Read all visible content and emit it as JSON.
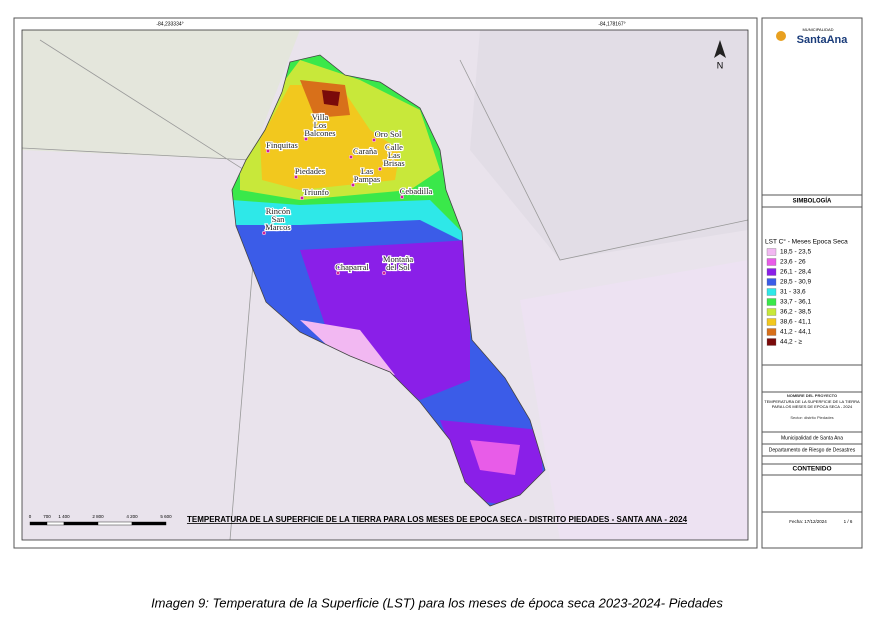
{
  "map": {
    "coords_top": [
      "-84,233334°",
      "-84,178167°"
    ],
    "north": "N",
    "title": "TEMPERATURA DE LA SUPERFICIE DE LA TIERRA PARA LOS MESES DE EPOCA SECA - DISTRITO PIEDADES - SANTA ANA - 2024",
    "scale_labels": [
      "0",
      "700",
      "1 400",
      "2 800",
      "4 200",
      "5 600"
    ],
    "places": [
      {
        "lines": [
          "Finquitas"
        ]
      },
      {
        "lines": [
          "Villa",
          "Los",
          "Balcones"
        ]
      },
      {
        "lines": [
          "Oro Sol"
        ]
      },
      {
        "lines": [
          "Caraña"
        ]
      },
      {
        "lines": [
          "Calle",
          "Las",
          "Brisas"
        ]
      },
      {
        "lines": [
          "Las",
          "Pampas"
        ]
      },
      {
        "lines": [
          "Piedades"
        ]
      },
      {
        "lines": [
          "Triunfo"
        ]
      },
      {
        "lines": [
          "Cebadilla"
        ]
      },
      {
        "lines": [
          "Rincón",
          "San",
          "Marcos"
        ]
      },
      {
        "lines": [
          "Chaparral"
        ]
      },
      {
        "lines": [
          "Montaña",
          "del Sol"
        ]
      }
    ]
  },
  "panel": {
    "logo_small": "MUNICIPALIDAD",
    "logo": "SantaAna",
    "symbology": "SIMBOLOGÍA",
    "legend_title": "LST C° - Meses Epoca Seca",
    "legend": [
      {
        "label": "18,5 - 23,5",
        "color": "#f2b8f2"
      },
      {
        "label": "23,6 - 26",
        "color": "#e85ce8"
      },
      {
        "label": "26,1 - 28,4",
        "color": "#8a1fe8"
      },
      {
        "label": "28,5 - 30,9",
        "color": "#3b5ce8"
      },
      {
        "label": "31 - 33,6",
        "color": "#2ee8e8"
      },
      {
        "label": "33,7 - 36,1",
        "color": "#3ae84a"
      },
      {
        "label": "36,2 - 38,5",
        "color": "#c8e83a"
      },
      {
        "label": "38,6 - 41,1",
        "color": "#f2c81e"
      },
      {
        "label": "41,2 - 44,1",
        "color": "#d8701a"
      },
      {
        "label": "44,2 - ≥",
        "color": "#7a0a0a"
      }
    ],
    "project_heading": "NOMBRE DEL PROYECTO",
    "project": "TEMPERATURA DE LA SUPERFICIE DE LA TIERRA PARA LOS MESES DE EPOCA SECA - 2024",
    "sector": "Sector: distrito Piedades",
    "institution": "Municipalidad de Santa Ana",
    "department": "Departamento de Riesgo de Desastres",
    "contents": "CONTENIDO",
    "date": "Fecha: 17/12/2024",
    "page": "1 / 6"
  },
  "caption": "Imagen 9: Temperatura de la Superficie (LST) para los meses de época seca 2023-2024- Piedades"
}
